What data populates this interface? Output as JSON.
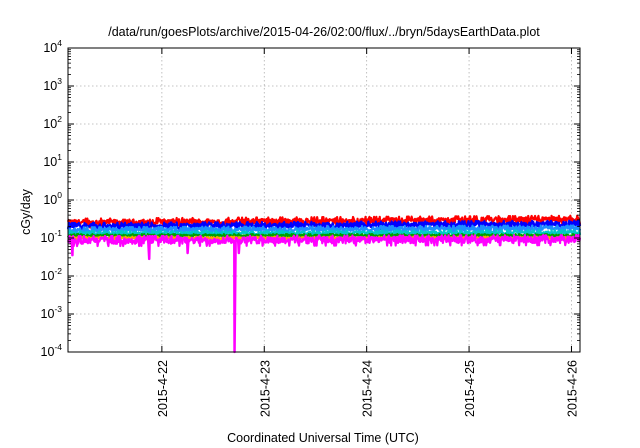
{
  "chart_data": {
    "type": "line",
    "title": "/data/run/goesPlots/archive/2015-04-26/02:00/flux/../bryn/5daysEarthData.plot",
    "xlabel": "Coordinated Universal Time (UTC)",
    "ylabel": "cGy/day",
    "yscale": "log",
    "ylim": [
      0.0001,
      10000
    ],
    "xlim": [
      "2015-04-21T02:00",
      "2015-04-26T02:00"
    ],
    "grid": true,
    "yticks": [
      {
        "base": "10",
        "exp": "-4"
      },
      {
        "base": "10",
        "exp": "-3"
      },
      {
        "base": "10",
        "exp": "-2"
      },
      {
        "base": "10",
        "exp": "-1"
      },
      {
        "base": "10",
        "exp": "0"
      },
      {
        "base": "10",
        "exp": "1"
      },
      {
        "base": "10",
        "exp": "2"
      },
      {
        "base": "10",
        "exp": "3"
      },
      {
        "base": "10",
        "exp": "4"
      }
    ],
    "xticks": [
      "2015-4-22",
      "2015-4-23",
      "2015-4-24",
      "2015-4-25",
      "2015-4-26"
    ],
    "series": [
      {
        "color": "#ff0000",
        "level_start": 0.25,
        "level_end": 0.3,
        "noise": 0.18
      },
      {
        "color": "#0000ff",
        "level_start": 0.2,
        "level_end": 0.23,
        "noise": 0.15
      },
      {
        "color": "#1e90ff",
        "level_start": 0.16,
        "level_end": 0.18,
        "noise": 0.12
      },
      {
        "color": "#00c8c8",
        "level_start": 0.13,
        "level_end": 0.14,
        "noise": 0.1
      },
      {
        "color": "#00a000",
        "level_start": 0.115,
        "level_end": 0.115,
        "noise": 0.06
      },
      {
        "color": "#ffa500",
        "level_start": 0.1,
        "level_end": 0.1,
        "noise": 0.05
      },
      {
        "color": "#ff00ff",
        "level_start": 0.085,
        "level_end": 0.09,
        "noise": 0.2,
        "drops": [
          {
            "time": "2015-04-21T03:00",
            "value": 0.035
          },
          {
            "time": "2015-04-21T21:00",
            "value": 0.028
          },
          {
            "time": "2015-04-22T06:00",
            "value": 0.04
          },
          {
            "time": "2015-04-22T17:00",
            "value": 0.0001
          },
          {
            "time": "2015-04-22T18:00",
            "value": 0.04
          }
        ]
      }
    ]
  }
}
